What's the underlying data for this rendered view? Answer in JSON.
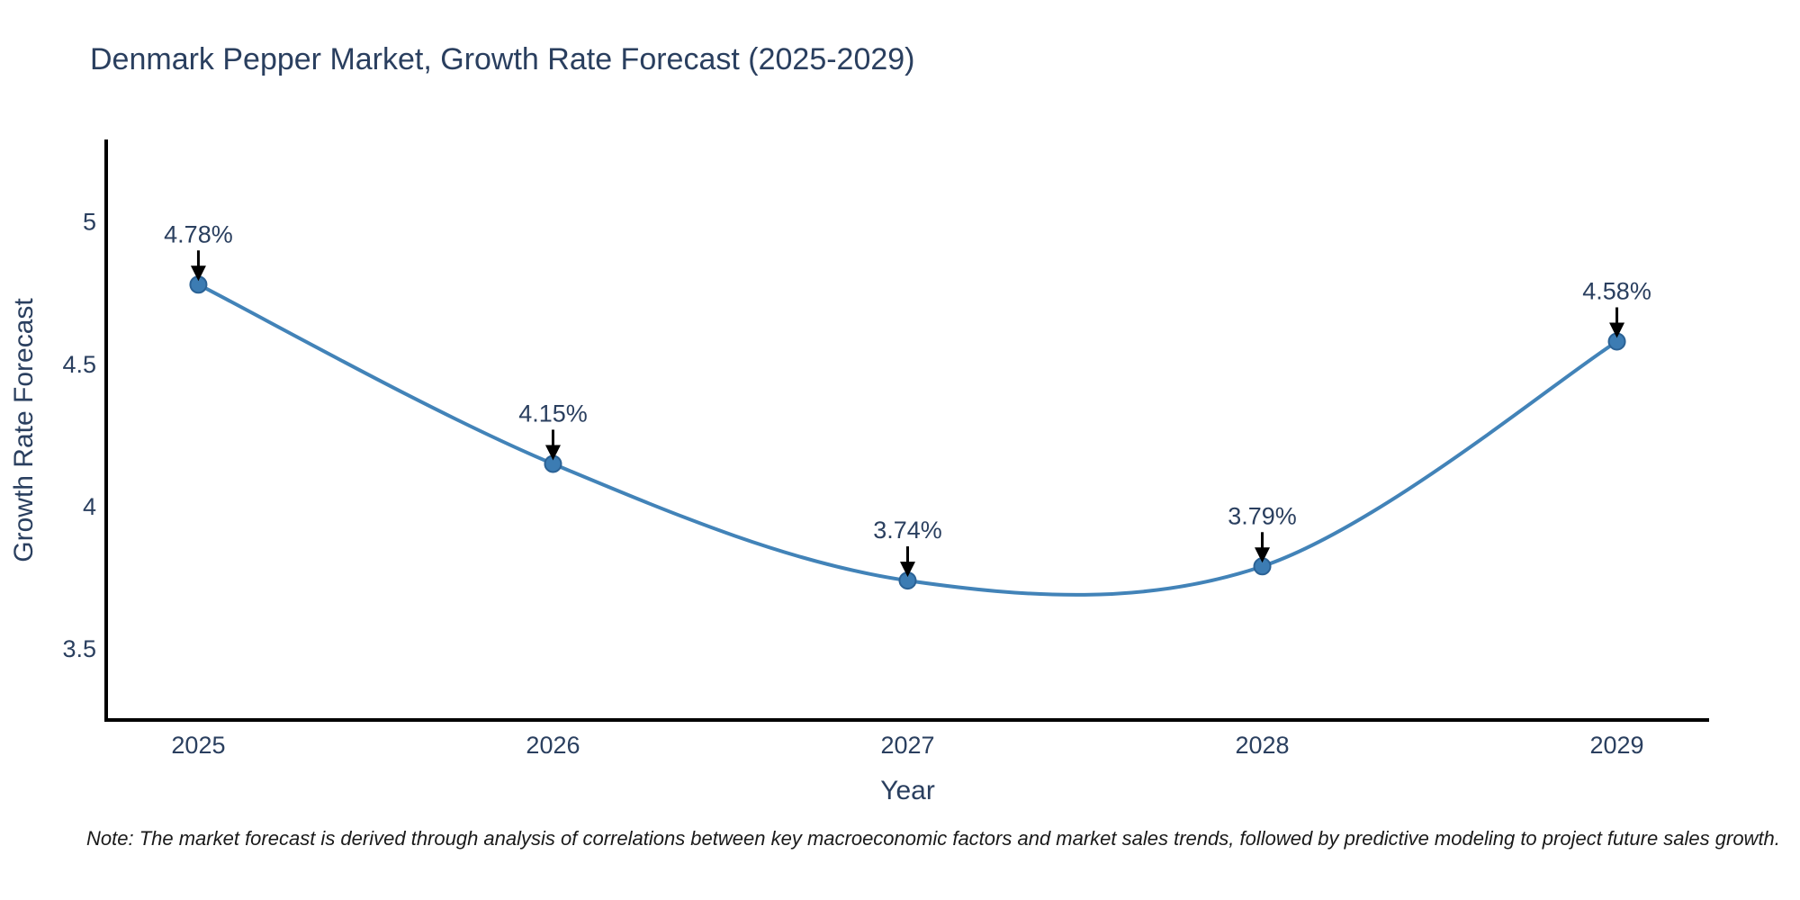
{
  "chart_data": {
    "type": "line",
    "title": "Denmark Pepper Market, Growth Rate Forecast (2025-2029)",
    "xlabel": "Year",
    "ylabel": "Growth Rate Forecast",
    "line_shape": "spline",
    "grid": false,
    "legend": false,
    "categories": [
      2025,
      2026,
      2027,
      2028,
      2029
    ],
    "values": [
      4.78,
      4.15,
      3.74,
      3.79,
      4.58
    ],
    "points": [
      {
        "x": 2025,
        "y": 4.78,
        "label": "4.78%"
      },
      {
        "x": 2026,
        "y": 4.15,
        "label": "4.15%"
      },
      {
        "x": 2027,
        "y": 3.74,
        "label": "3.74%"
      },
      {
        "x": 2028,
        "y": 3.79,
        "label": "3.79%"
      },
      {
        "x": 2029,
        "y": 4.58,
        "label": "4.58%"
      }
    ],
    "x_tick_labels": [
      "2025",
      "2026",
      "2027",
      "2028",
      "2029"
    ],
    "y_ticks": [
      3.5,
      4,
      4.5,
      5
    ],
    "y_tick_labels": [
      "3.5",
      "4",
      "4.5",
      "5"
    ],
    "xlim": [
      2024.74,
      2029.26
    ],
    "ylim": [
      3.25,
      5.29
    ],
    "colors": {
      "line": "#4283b8",
      "marker_fill": "#3c7cb3",
      "marker_edge": "#2b6295",
      "axis_line": "#000000",
      "text": "#2a3f5f",
      "annotation_text": "#2a3f5f",
      "annotation_arrow": "#000000",
      "note_text": "#1a1a1a"
    }
  },
  "note": "Note: The market forecast is derived through analysis of correlations between key macroeconomic factors and market sales trends, followed by predictive modeling to project future sales growth."
}
